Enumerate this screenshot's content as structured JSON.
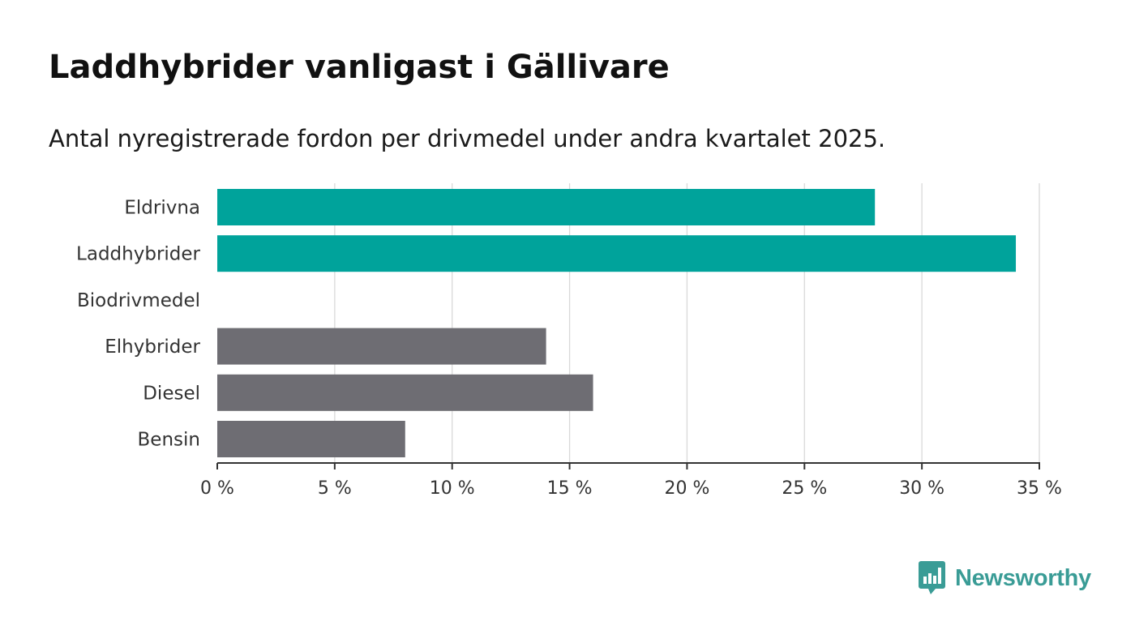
{
  "title": "Laddhybrider vanligast i Gällivare",
  "subtitle": "Antal nyregistrerade fordon per drivmedel under andra kvartalet 2025.",
  "brand": {
    "name": "Newsworthy",
    "color": "#3a9c96",
    "icon": "bar-chart-speech-bubble-icon"
  },
  "colors": {
    "highlight": "#00a39b",
    "default": "#6e6d73",
    "grid": "#d9d9d9",
    "axis": "#333333"
  },
  "chart_data": {
    "type": "bar",
    "orientation": "horizontal",
    "categories": [
      "Eldrivna",
      "Laddhybrider",
      "Biodrivmedel",
      "Elhybrider",
      "Diesel",
      "Bensin"
    ],
    "values": [
      28,
      34,
      0,
      14,
      16,
      8
    ],
    "highlighted": [
      true,
      true,
      false,
      false,
      false,
      false
    ],
    "unit": "%",
    "xlim": [
      0,
      35
    ],
    "xticks": [
      0,
      5,
      10,
      15,
      20,
      25,
      30,
      35
    ],
    "xtick_labels": [
      "0 %",
      "5 %",
      "10 %",
      "15 %",
      "20 %",
      "25 %",
      "30 %",
      "35 %"
    ],
    "grid": true,
    "title": "Laddhybrider vanligast i Gällivare",
    "xlabel": "",
    "ylabel": ""
  }
}
